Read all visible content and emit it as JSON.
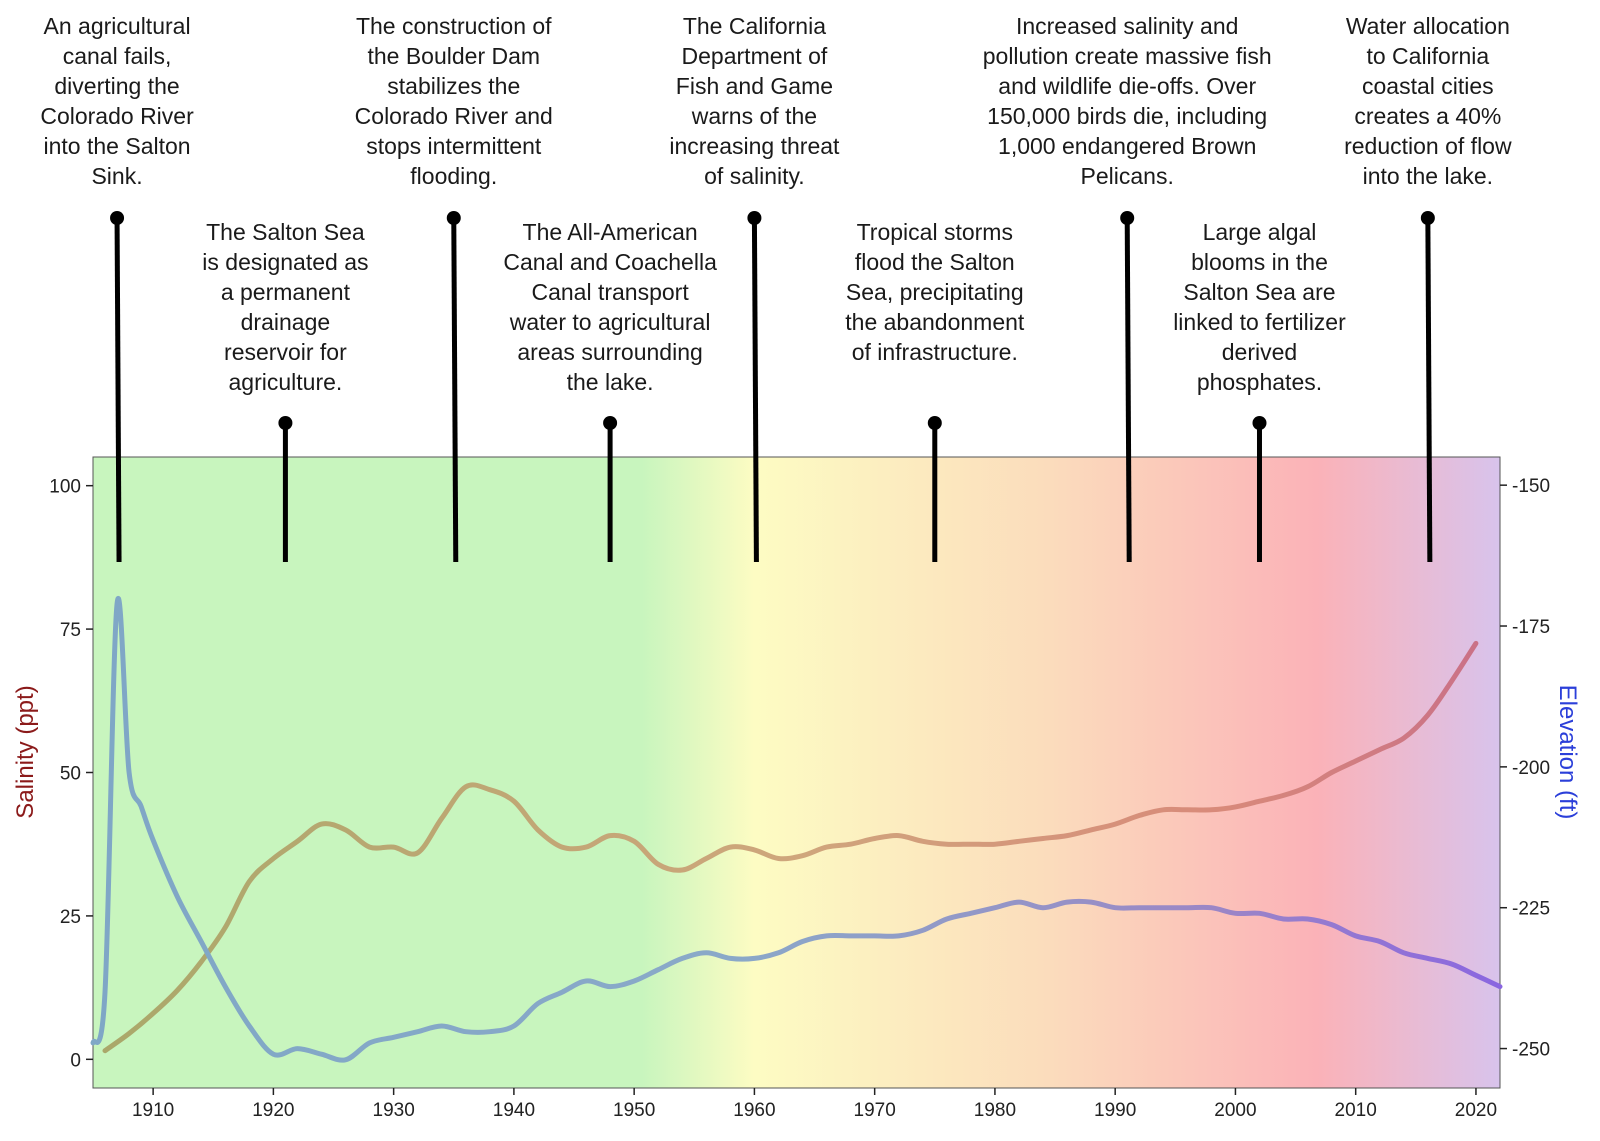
{
  "chart_data": {
    "type": "line",
    "title": "",
    "xlabel": "",
    "ylabel_left": "Salinity (ppt)",
    "ylabel_right": "Elevation (ft)",
    "xlim": [
      1905,
      2022
    ],
    "ylim_left": [
      -5,
      105
    ],
    "ylim_right": [
      -257,
      -145
    ],
    "x_ticks": [
      1910,
      1920,
      1930,
      1940,
      1950,
      1960,
      1970,
      1980,
      1990,
      2000,
      2010,
      2020
    ],
    "y_left_ticks": [
      0,
      25,
      50,
      75,
      100
    ],
    "y_right_ticks": [
      -150,
      -175,
      -200,
      -225,
      -250
    ],
    "grid": false,
    "colors": {
      "salinity_axis_label": "#8b1a1a",
      "elevation_axis_label": "#2b3fd9",
      "background_stops": [
        "#c8f5be",
        "#c8f5be",
        "#fdfcc3",
        "#fbdcbc",
        "#fbb2b8",
        "#d8c3ec"
      ]
    },
    "series": [
      {
        "name": "Salinity",
        "axis": "left",
        "x": [
          1906,
          1908,
          1910,
          1912,
          1914,
          1916,
          1918,
          1920,
          1922,
          1924,
          1926,
          1928,
          1930,
          1932,
          1934,
          1936,
          1938,
          1940,
          1942,
          1944,
          1946,
          1948,
          1950,
          1952,
          1954,
          1956,
          1958,
          1960,
          1962,
          1964,
          1966,
          1968,
          1970,
          1972,
          1974,
          1976,
          1978,
          1980,
          1982,
          1984,
          1986,
          1988,
          1990,
          1992,
          1994,
          1996,
          1998,
          2000,
          2002,
          2004,
          2006,
          2008,
          2010,
          2012,
          2014,
          2016,
          2018,
          2020
        ],
        "values": [
          1.5,
          4.5,
          8,
          12,
          17,
          23,
          31,
          35,
          38,
          41,
          40,
          37,
          37,
          36,
          42,
          47.5,
          47,
          45,
          40,
          37,
          37,
          39,
          38,
          34,
          33,
          35,
          37,
          36.5,
          35,
          35.5,
          37,
          37.5,
          38.5,
          39,
          38,
          37.5,
          37.5,
          37.5,
          38,
          38.5,
          39,
          40,
          41,
          42.5,
          43.5,
          43.5,
          43.5,
          44,
          45,
          46,
          47.5,
          50,
          52,
          54,
          56,
          60,
          66,
          72.5
        ]
      },
      {
        "name": "Elevation",
        "axis": "right",
        "x": [
          1905,
          1906,
          1907,
          1908,
          1909,
          1910,
          1912,
          1914,
          1916,
          1918,
          1920,
          1922,
          1924,
          1926,
          1928,
          1930,
          1932,
          1934,
          1936,
          1938,
          1940,
          1942,
          1944,
          1946,
          1948,
          1950,
          1952,
          1954,
          1956,
          1958,
          1960,
          1962,
          1964,
          1966,
          1968,
          1970,
          1972,
          1974,
          1976,
          1978,
          1980,
          1982,
          1984,
          1986,
          1988,
          1990,
          1992,
          1994,
          1996,
          1998,
          2000,
          2002,
          2004,
          2006,
          2008,
          2010,
          2012,
          2014,
          2016,
          2018,
          2020,
          2022
        ],
        "values": [
          -249,
          -240,
          -171,
          -201,
          -207,
          -213,
          -223,
          -231,
          -239,
          -246,
          -251,
          -250,
          -251,
          -252,
          -249,
          -248,
          -247,
          -246,
          -247,
          -247,
          -246,
          -242,
          -240,
          -238,
          -239,
          -238,
          -236,
          -234,
          -233,
          -234,
          -234,
          -233,
          -231,
          -230,
          -230,
          -230,
          -230,
          -229,
          -227,
          -226,
          -225,
          -224,
          -225,
          -224,
          -224,
          -225,
          -225,
          -225,
          -225,
          -225,
          -226,
          -226,
          -227,
          -227,
          -228,
          -230,
          -231,
          -233,
          -234,
          -235,
          -237,
          -239
        ]
      }
    ],
    "annotations": [
      {
        "year": 1907,
        "top": true,
        "lines": [
          "An agricultural",
          "canal fails,",
          "diverting  the",
          "Colorado River",
          "into the Salton",
          "Sink."
        ]
      },
      {
        "year": 1921,
        "top": false,
        "lines": [
          "The Salton Sea",
          "is designated as",
          "a permanent",
          "drainage",
          "reservoir for",
          "agriculture."
        ]
      },
      {
        "year": 1935,
        "top": true,
        "lines": [
          "The construction of",
          "the Boulder Dam",
          "stabilizes the",
          "Colorado River and",
          "stops intermittent",
          "flooding."
        ]
      },
      {
        "year": 1948,
        "top": false,
        "lines": [
          "The All-American",
          "Canal and Coachella",
          "Canal transport",
          "water to agricultural",
          "areas surrounding",
          "the lake."
        ]
      },
      {
        "year": 1960,
        "top": true,
        "lines": [
          "The California",
          "Department of",
          "Fish and Game",
          "warns of the",
          "increasing threat",
          "of salinity."
        ]
      },
      {
        "year": 1975,
        "top": false,
        "lines": [
          "Tropical storms",
          "flood the Salton",
          "Sea, precipitating",
          "the abandonment",
          "of infrastructure."
        ]
      },
      {
        "year": 1991,
        "top": true,
        "lines": [
          "Increased salinity and",
          "pollution create massive fish",
          "and wildlife die-offs. Over",
          "150,000 birds die, including",
          "1,000 endangered Brown",
          "Pelicans."
        ]
      },
      {
        "year": 2002,
        "top": false,
        "lines": [
          "Large algal",
          "blooms in the",
          "Salton Sea are",
          "linked to fertilizer",
          "derived",
          "phosphates."
        ]
      },
      {
        "year": 2016,
        "top": true,
        "lines": [
          "Water allocation",
          "to California",
          "coastal cities",
          "creates a 40%",
          "reduction of flow",
          "into the lake."
        ]
      }
    ]
  }
}
